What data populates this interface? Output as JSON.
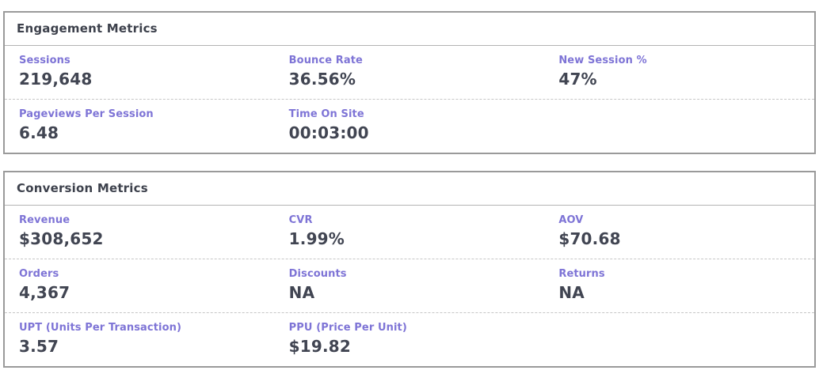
{
  "colors": {
    "label": "#7e74d6",
    "value": "#414552",
    "header_text": "#3d414c",
    "panel_border": "#9a9a9a",
    "header_divider": "#b3b3b3",
    "row_divider": "#c6c6c6",
    "background": "#ffffff"
  },
  "panels": [
    {
      "title": "Engagement Metrics",
      "rows": [
        [
          {
            "label": "Sessions",
            "value": "219,648"
          },
          {
            "label": "Bounce Rate",
            "value": "36.56%"
          },
          {
            "label": "New Session %",
            "value": "47%"
          }
        ],
        [
          {
            "label": "Pageviews Per Session",
            "value": "6.48"
          },
          {
            "label": "Time On Site",
            "value": "00:03:00"
          }
        ]
      ]
    },
    {
      "title": "Conversion Metrics",
      "rows": [
        [
          {
            "label": "Revenue",
            "value": "$308,652"
          },
          {
            "label": "CVR",
            "value": "1.99%"
          },
          {
            "label": "AOV",
            "value": "$70.68"
          }
        ],
        [
          {
            "label": "Orders",
            "value": "4,367"
          },
          {
            "label": "Discounts",
            "value": "NA"
          },
          {
            "label": "Returns",
            "value": "NA"
          }
        ],
        [
          {
            "label": "UPT (Units Per Transaction)",
            "value": "3.57"
          },
          {
            "label": "PPU (Price Per Unit)",
            "value": "$19.82"
          }
        ]
      ]
    }
  ]
}
